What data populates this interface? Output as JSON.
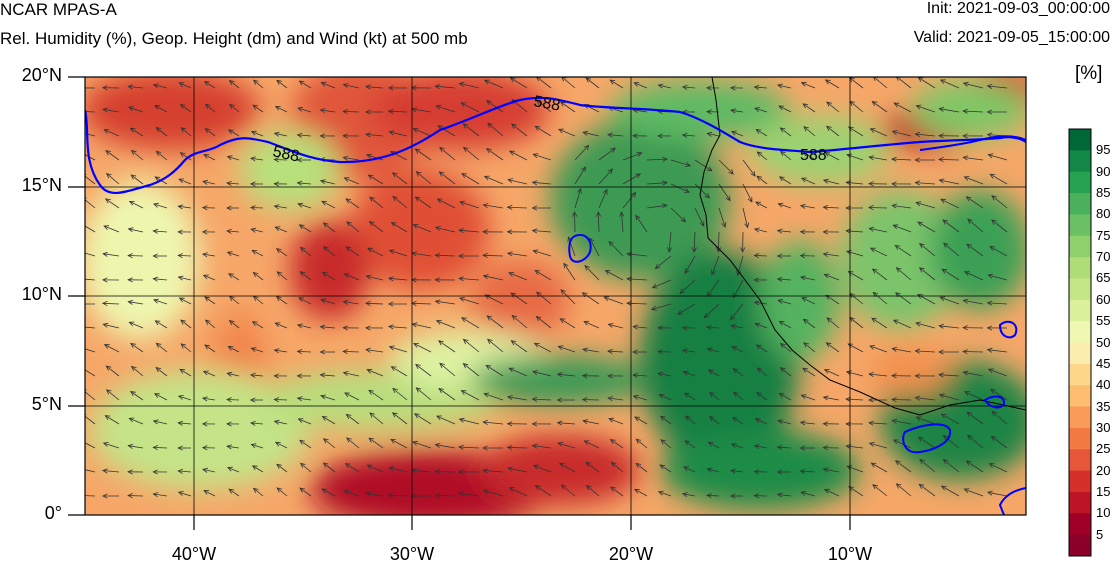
{
  "header": {
    "title": "NCAR MPAS-A",
    "subtitle": "Rel. Humidity (%), Geop. Height (dm) and Wind (kt) at 500 mb",
    "init": "Init: 2021-09-03_00:00:00",
    "valid": "Valid: 2021-09-05_15:00:00"
  },
  "axes": {
    "lat_labels": [
      "20°N",
      "15°N",
      "10°N",
      "5°N",
      "0°"
    ],
    "lon_labels": [
      "40°W",
      "30°W",
      "20°W",
      "10°W"
    ]
  },
  "contour": {
    "labels": [
      "588",
      "588",
      "588"
    ],
    "color": "#0000ff"
  },
  "colorbar": {
    "unit": "[%]",
    "levels": [
      "95",
      "90",
      "85",
      "80",
      "75",
      "70",
      "65",
      "60",
      "55",
      "50",
      "45",
      "40",
      "35",
      "30",
      "25",
      "20",
      "15",
      "10",
      "5"
    ],
    "colors": [
      "#006837",
      "#138846",
      "#26a150",
      "#4bb05c",
      "#6cc064",
      "#8fcf6c",
      "#aedc77",
      "#c5e687",
      "#dbf09a",
      "#eff8b0",
      "#fbedad",
      "#fdd88a",
      "#fdbe6f",
      "#fa9c58",
      "#f47a44",
      "#e65639",
      "#d4312b",
      "#bb1526",
      "#a00028",
      "#8b0028"
    ]
  },
  "map": {
    "land_outline_color": "#000000",
    "grid_color": "#000000",
    "vector_color": "#333333"
  }
}
